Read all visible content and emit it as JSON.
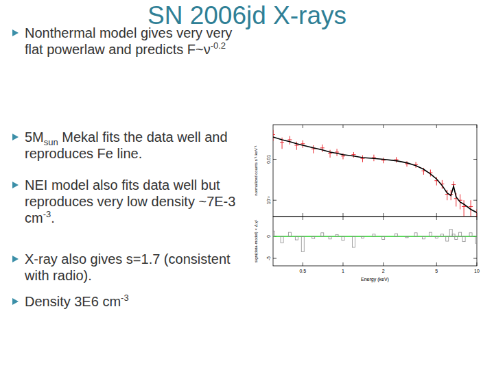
{
  "slide": {
    "title": "SN 2006jd X-rays",
    "bullets": [
      [
        {
          "text": "Nonthermal model gives very very flat powerlaw and predicts F~ν"
        },
        {
          "sup": "-0.2"
        }
      ],
      [
        {
          "text": "5M"
        },
        {
          "sub": "sun"
        },
        {
          "text": " Mekal fits the data well and reproduces Fe line."
        }
      ],
      [
        {
          "text": "NEI model also fits data well but reproduces very low density ~7E-3 cm"
        },
        {
          "sup": "-3"
        },
        {
          "text": "."
        }
      ],
      [
        {
          "text": "X-ray also gives s=1.7 (consistent with radio)."
        }
      ],
      [
        {
          "text": "Density 3E6 cm"
        },
        {
          "sup": "-3"
        }
      ]
    ]
  },
  "chart_data": [
    {
      "type": "scatter",
      "ylabel": "normalized counts s⁻¹ keV⁻¹",
      "log": true,
      "tick_labels": "y",
      "x": [
        0.3,
        0.35,
        0.4,
        0.45,
        0.5,
        0.6,
        0.7,
        0.8,
        0.9,
        1.0,
        1.2,
        1.4,
        1.7,
        2.0,
        2.5,
        3.0,
        3.5,
        4.0,
        4.5,
        5.0,
        5.5,
        6.0,
        6.4,
        6.7,
        7.0,
        7.5,
        8.0,
        9.0,
        10.0
      ],
      "xlim": [
        0.3,
        10
      ],
      "xticks": [
        0.5,
        1,
        2,
        5,
        10
      ],
      "ylim": [
        0.0004,
        0.07
      ],
      "yticks": [
        {
          "value": 0.001,
          "label": "10⁻³"
        },
        0.01
      ],
      "series": [
        {
          "type": "scatter",
          "color": "#e8141c",
          "marker": "cross",
          "values": [
            0.04,
            0.026,
            0.03,
            0.022,
            0.024,
            0.018,
            0.019,
            0.014,
            0.015,
            0.012,
            0.013,
            0.0105,
            0.011,
            0.0095,
            0.0098,
            0.0078,
            0.0074,
            0.0052,
            0.0047,
            0.003,
            0.0025,
            0.0014,
            0.0014,
            0.0024,
            0.0011,
            0.001,
            0.0007,
            0.0007,
            0.0004
          ],
          "errors": [
            0.012,
            0.008,
            0.007,
            0.005,
            0.005,
            0.004,
            0.004,
            0.003,
            0.003,
            0.002,
            0.002,
            0.002,
            0.002,
            0.0015,
            0.0015,
            0.0012,
            0.0012,
            0.001,
            0.0009,
            0.0007,
            0.0006,
            0.0004,
            0.0004,
            0.0005,
            0.0004,
            0.0004,
            0.0003,
            0.0003,
            0.0002
          ]
        },
        {
          "type": "line",
          "color": "#000000",
          "line_style": "solid",
          "values": [
            0.035,
            0.03,
            0.027,
            0.024,
            0.022,
            0.019,
            0.017,
            0.015,
            0.014,
            0.013,
            0.012,
            0.011,
            0.0105,
            0.01,
            0.0092,
            0.0082,
            0.007,
            0.0057,
            0.0044,
            0.0033,
            0.0023,
            0.0015,
            0.0013,
            0.0022,
            0.0012,
            0.0009,
            0.0008,
            0.0006,
            0.0005
          ]
        }
      ]
    },
    {
      "type": "bar",
      "xlabel": "Energy (keV)",
      "ylabel": "sign(data-model) × Δ χ²",
      "log": "x",
      "color": "#8c8c8c",
      "x": [
        0.3,
        0.35,
        0.4,
        0.45,
        0.5,
        0.6,
        0.7,
        0.8,
        0.9,
        1.0,
        1.2,
        1.4,
        1.7,
        2.0,
        2.5,
        3.0,
        3.5,
        4.0,
        4.5,
        5.0,
        5.5,
        6.0,
        6.4,
        6.7,
        7.0,
        7.5,
        8.0,
        9.0,
        10.0
      ],
      "values": [
        1.2,
        -1.5,
        0.9,
        -0.8,
        -3.5,
        -0.5,
        0.8,
        -0.6,
        0.4,
        -0.9,
        -2.5,
        -0.4,
        0.5,
        -0.7,
        0.6,
        -0.3,
        0.8,
        -0.6,
        0.9,
        -0.4,
        0.5,
        -1.1,
        1.6,
        0.5,
        -0.7,
        0.9,
        -1.2,
        0.8,
        -1.6
      ],
      "xlim": [
        0.3,
        10
      ],
      "xticks": [
        0.5,
        1,
        2,
        5,
        10
      ],
      "ylim": [
        -6.7,
        4.5
      ],
      "yticks": [
        -5,
        0
      ]
    }
  ]
}
